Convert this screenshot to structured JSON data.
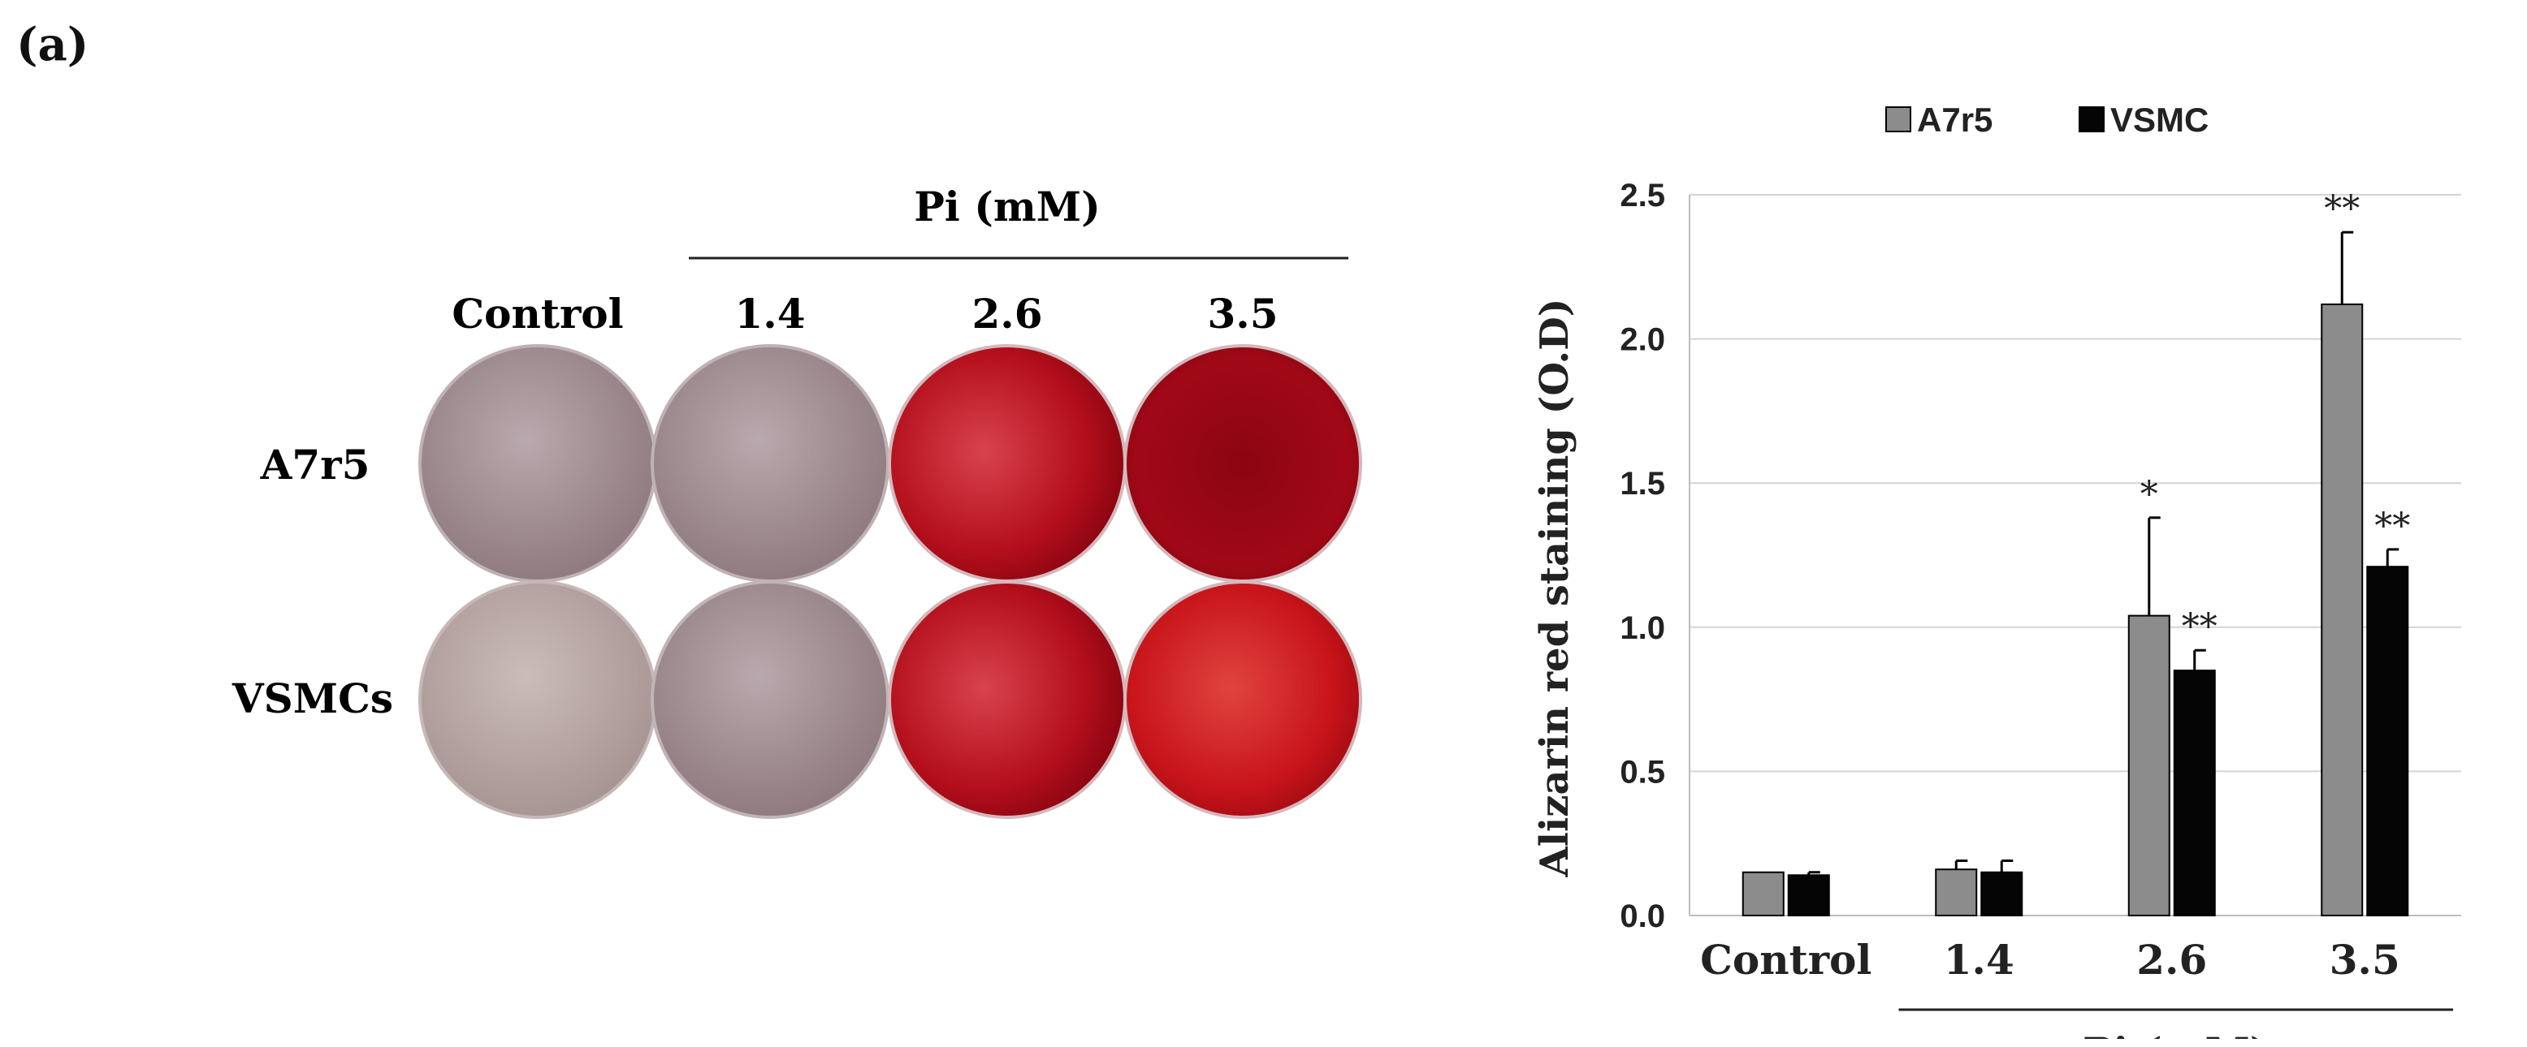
{
  "panel_label": "(a)",
  "plates": {
    "group_header": "Pi (mM)",
    "columns": [
      "Control",
      "1.4",
      "2.6",
      "3.5"
    ],
    "rows": [
      "A7r5",
      "VSMCs"
    ],
    "wells": [
      [
        "#9f8a8f",
        "#9a8487",
        "#b50d1a",
        "#9a0714"
      ],
      [
        "#b7a6a4",
        "#a28e93",
        "#c31b1f",
        "#c8141a"
      ]
    ]
  },
  "chart_data": {
    "type": "bar",
    "categories": [
      "Control",
      "1.4",
      "2.6",
      "3.5"
    ],
    "group_label": "Pi (mM)",
    "ylabel": "Alizarin red staining (O.D)",
    "xlabel": "",
    "ylim": [
      0,
      2.5
    ],
    "yticks": [
      "0.0",
      "0.5",
      "1.0",
      "1.5",
      "2.0",
      "2.5"
    ],
    "grid": true,
    "legend_position": "top",
    "series": [
      {
        "name": "A7r5",
        "color": "#8c8c8c",
        "values": [
          0.15,
          0.16,
          1.04,
          2.12
        ],
        "errors": [
          0.0,
          0.03,
          0.34,
          0.25
        ],
        "sig": [
          "",
          "",
          "*",
          "**"
        ]
      },
      {
        "name": "VSMC",
        "color": "#050505",
        "values": [
          0.14,
          0.15,
          0.85,
          1.21
        ],
        "errors": [
          0.01,
          0.04,
          0.07,
          0.06
        ],
        "sig": [
          "",
          "",
          "**",
          "**"
        ]
      }
    ]
  }
}
